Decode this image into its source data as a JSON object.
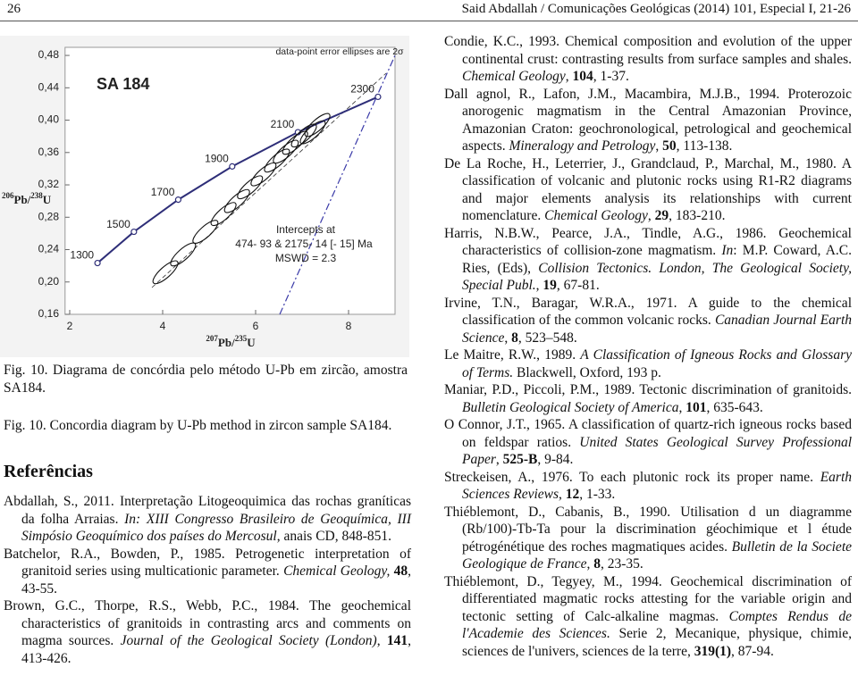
{
  "header": {
    "page": "26",
    "running": "Said Abdallah / Comunicações Geológicas (2014) 101, Especial I, 21-26"
  },
  "chart_data": {
    "type": "scatter",
    "title": "SA 184",
    "subtitle": "data-point error ellipses are 2σ",
    "annotations": [
      "Intercepts at",
      "474- 93 & 2175- 14 [- 15] Ma",
      "MSWD = 2.3"
    ],
    "x_label": [
      "207",
      "Pb/",
      "235",
      "U"
    ],
    "y_label": [
      "206",
      "Pb/",
      "238",
      "U"
    ],
    "xlim": [
      1.9,
      9.0
    ],
    "ylim": [
      0.16,
      0.49
    ],
    "xticks": [
      2,
      4,
      6,
      8
    ],
    "yticks": [
      {
        "value": 0.16,
        "label": "0,16"
      },
      {
        "value": 0.2,
        "label": "0,20"
      },
      {
        "value": 0.24,
        "label": "0,24"
      },
      {
        "value": 0.28,
        "label": "0,28"
      },
      {
        "value": 0.32,
        "label": "0,32"
      },
      {
        "value": 0.36,
        "label": "0,36"
      },
      {
        "value": 0.4,
        "label": "0,40"
      },
      {
        "value": 0.44,
        "label": "0,44"
      },
      {
        "value": 0.48,
        "label": "0,48"
      }
    ],
    "concordia": {
      "color": "#2e2e78",
      "ages": [
        "1300",
        "1500",
        "1700",
        "1900",
        "2100",
        "2300"
      ],
      "x": [
        2.598,
        3.381,
        4.335,
        5.496,
        6.91,
        8.633
      ],
      "y": [
        0.2234,
        0.262,
        0.3017,
        0.3428,
        0.3851,
        0.4288
      ]
    },
    "series": [
      {
        "color": "#111111",
        "x": [
          4.06,
          4.44,
          4.92,
          5.31,
          5.6,
          5.88,
          6.17,
          6.46,
          6.65,
          6.85,
          7.04,
          7.23,
          7.33
        ],
        "values": [
          0.212,
          0.234,
          0.262,
          0.284,
          0.3,
          0.317,
          0.333,
          0.35,
          0.361,
          0.372,
          0.381,
          0.385,
          0.394
        ]
      }
    ]
  },
  "captions": [
    "Fig. 10. Diagrama de concórdia pelo método U-Pb em zircão, amostra SA184.",
    "Fig. 10. Concordia diagram by U-Pb method in zircon sample SA184."
  ],
  "references_heading": "Referências",
  "references_left": [
    [
      {
        "text": "Abdallah, S., 2011. Interpretação Litogeoquimica das rochas graníticas da folha Arraias. "
      },
      {
        "text": "In: XIII Congresso Brasileiro de Geoquímica, III Simpósio Geoquímico dos países do Mercosul",
        "style": "italic"
      },
      {
        "text": ", anais CD, 848-851."
      }
    ],
    [
      {
        "text": "Batchelor, R.A., Bowden, P., 1985. Petrogenetic interpretation of granitoid series using multicationic parameter. "
      },
      {
        "text": "Chemical Geology,",
        "style": "italic"
      },
      {
        "text": " "
      },
      {
        "text": "48",
        "style": "bold"
      },
      {
        "text": ", 43-55."
      }
    ],
    [
      {
        "text": "Brown, G.C., Thorpe, R.S., Webb, P.C., 1984. The geochemical characteristics of granitoids in contrasting arcs and comments on magma sources. "
      },
      {
        "text": "Journal of the Geological Society (London)",
        "style": "italic"
      },
      {
        "text": ", "
      },
      {
        "text": "141",
        "style": "bold"
      },
      {
        "text": ", 413-426."
      }
    ]
  ],
  "references_right": [
    [
      {
        "text": "Condie, K.C., 1993. Chemical composition and evolution of the upper continental crust: contrasting results from surface samples and shales. "
      },
      {
        "text": "Chemical Geology",
        "style": "italic"
      },
      {
        "text": ", "
      },
      {
        "text": "104",
        "style": "bold"
      },
      {
        "text": ", 1-37."
      }
    ],
    [
      {
        "text": "Dall agnol, R., Lafon, J.M., Macambira, M.J.B., 1994. Proterozoic anorogenic magmatism in the Central Amazonian Province, Amazonian Craton: geochronological, petrological and geochemical aspects. "
      },
      {
        "text": "Mineralogy and Petrology",
        "style": "italic"
      },
      {
        "text": ", "
      },
      {
        "text": "50",
        "style": "bold"
      },
      {
        "text": ", 113-138."
      }
    ],
    [
      {
        "text": "De La Roche, H., Leterrier, J., Grandclaud, P., Marchal, M., 1980. A classification of volcanic and plutonic rocks using R1-R2 diagrams and major elements analysis its relationships with current nomenclature. "
      },
      {
        "text": "Chemical Geology",
        "style": "italic"
      },
      {
        "text": ", "
      },
      {
        "text": "29",
        "style": "bold"
      },
      {
        "text": ", 183-210."
      }
    ],
    [
      {
        "text": "Harris, N.B.W., Pearce, J.A., Tindle, A.G., 1986. Geochemical characteristics of collision-zone magmatism. "
      },
      {
        "text": "In",
        "style": "italic"
      },
      {
        "text": ": M.P. Coward, A.C. Ries, (Eds), "
      },
      {
        "text": "Collision Tectonics. London, The Geological Society, Special Publ.",
        "style": "italic"
      },
      {
        "text": ", "
      },
      {
        "text": "19",
        "style": "bold"
      },
      {
        "text": ", 67-81."
      }
    ],
    [
      {
        "text": "Irvine, T.N., Baragar, W.R.A., 1971. A guide to the chemical classification of the common volcanic rocks. "
      },
      {
        "text": "Canadian Journal Earth Science",
        "style": "italic"
      },
      {
        "text": ", "
      },
      {
        "text": "8",
        "style": "bold"
      },
      {
        "text": ", 523–548."
      }
    ],
    [
      {
        "text": "Le Maitre, R.W., 1989. "
      },
      {
        "text": "A Classification of Igneous Rocks and Glossary of Terms.",
        "style": "italic"
      },
      {
        "text": " Blackwell, Oxford, 193 p."
      }
    ],
    [
      {
        "text": "Maniar, P.D., Piccoli, P.M., 1989. Tectonic discrimination of granitoids. "
      },
      {
        "text": "Bulletin Geological Society of America",
        "style": "italic"
      },
      {
        "text": ", "
      },
      {
        "text": "101",
        "style": "bold"
      },
      {
        "text": ", 635-643."
      }
    ],
    [
      {
        "text": "O Connor, J.T., 1965. A classification of quartz-rich igneous rocks based on feldspar ratios. "
      },
      {
        "text": "United States Geological Survey Professional Paper",
        "style": "italic"
      },
      {
        "text": ", "
      },
      {
        "text": "525-B",
        "style": "bold"
      },
      {
        "text": ", 9-84."
      }
    ],
    [
      {
        "text": "Streckeisen, A., 1976. To each plutonic rock its proper name. "
      },
      {
        "text": "Earth Sciences Reviews",
        "style": "italic"
      },
      {
        "text": ", "
      },
      {
        "text": "12",
        "style": "bold"
      },
      {
        "text": ", 1-33."
      }
    ],
    [
      {
        "text": "Thiéblemont, D., Cabanis, B., 1990. Utilisation d un diagramme (Rb/100)-Tb-Ta pour la discrimination géochimique et l étude pétrogénétique des roches magmatiques acides. "
      },
      {
        "text": "Bulletin de la Societe Geologique de France",
        "style": "italic"
      },
      {
        "text": ", "
      },
      {
        "text": "8",
        "style": "bold"
      },
      {
        "text": ", 23-35."
      }
    ],
    [
      {
        "text": "Thiéblemont, D., Tegyey, M., 1994. Geochemical discrimination of differentiated magmatic rocks attesting for the variable origin and tectonic setting of Calc-alkaline magmas. "
      },
      {
        "text": "Comptes Rendus de l'Academie des Sciences.",
        "style": "italic"
      },
      {
        "text": " Serie 2, Mecanique, physique, chimie, sciences de l'univers, sciences de la terre, "
      },
      {
        "text": "319(1)",
        "style": "bold"
      },
      {
        "text": ", 87-94."
      }
    ]
  ]
}
